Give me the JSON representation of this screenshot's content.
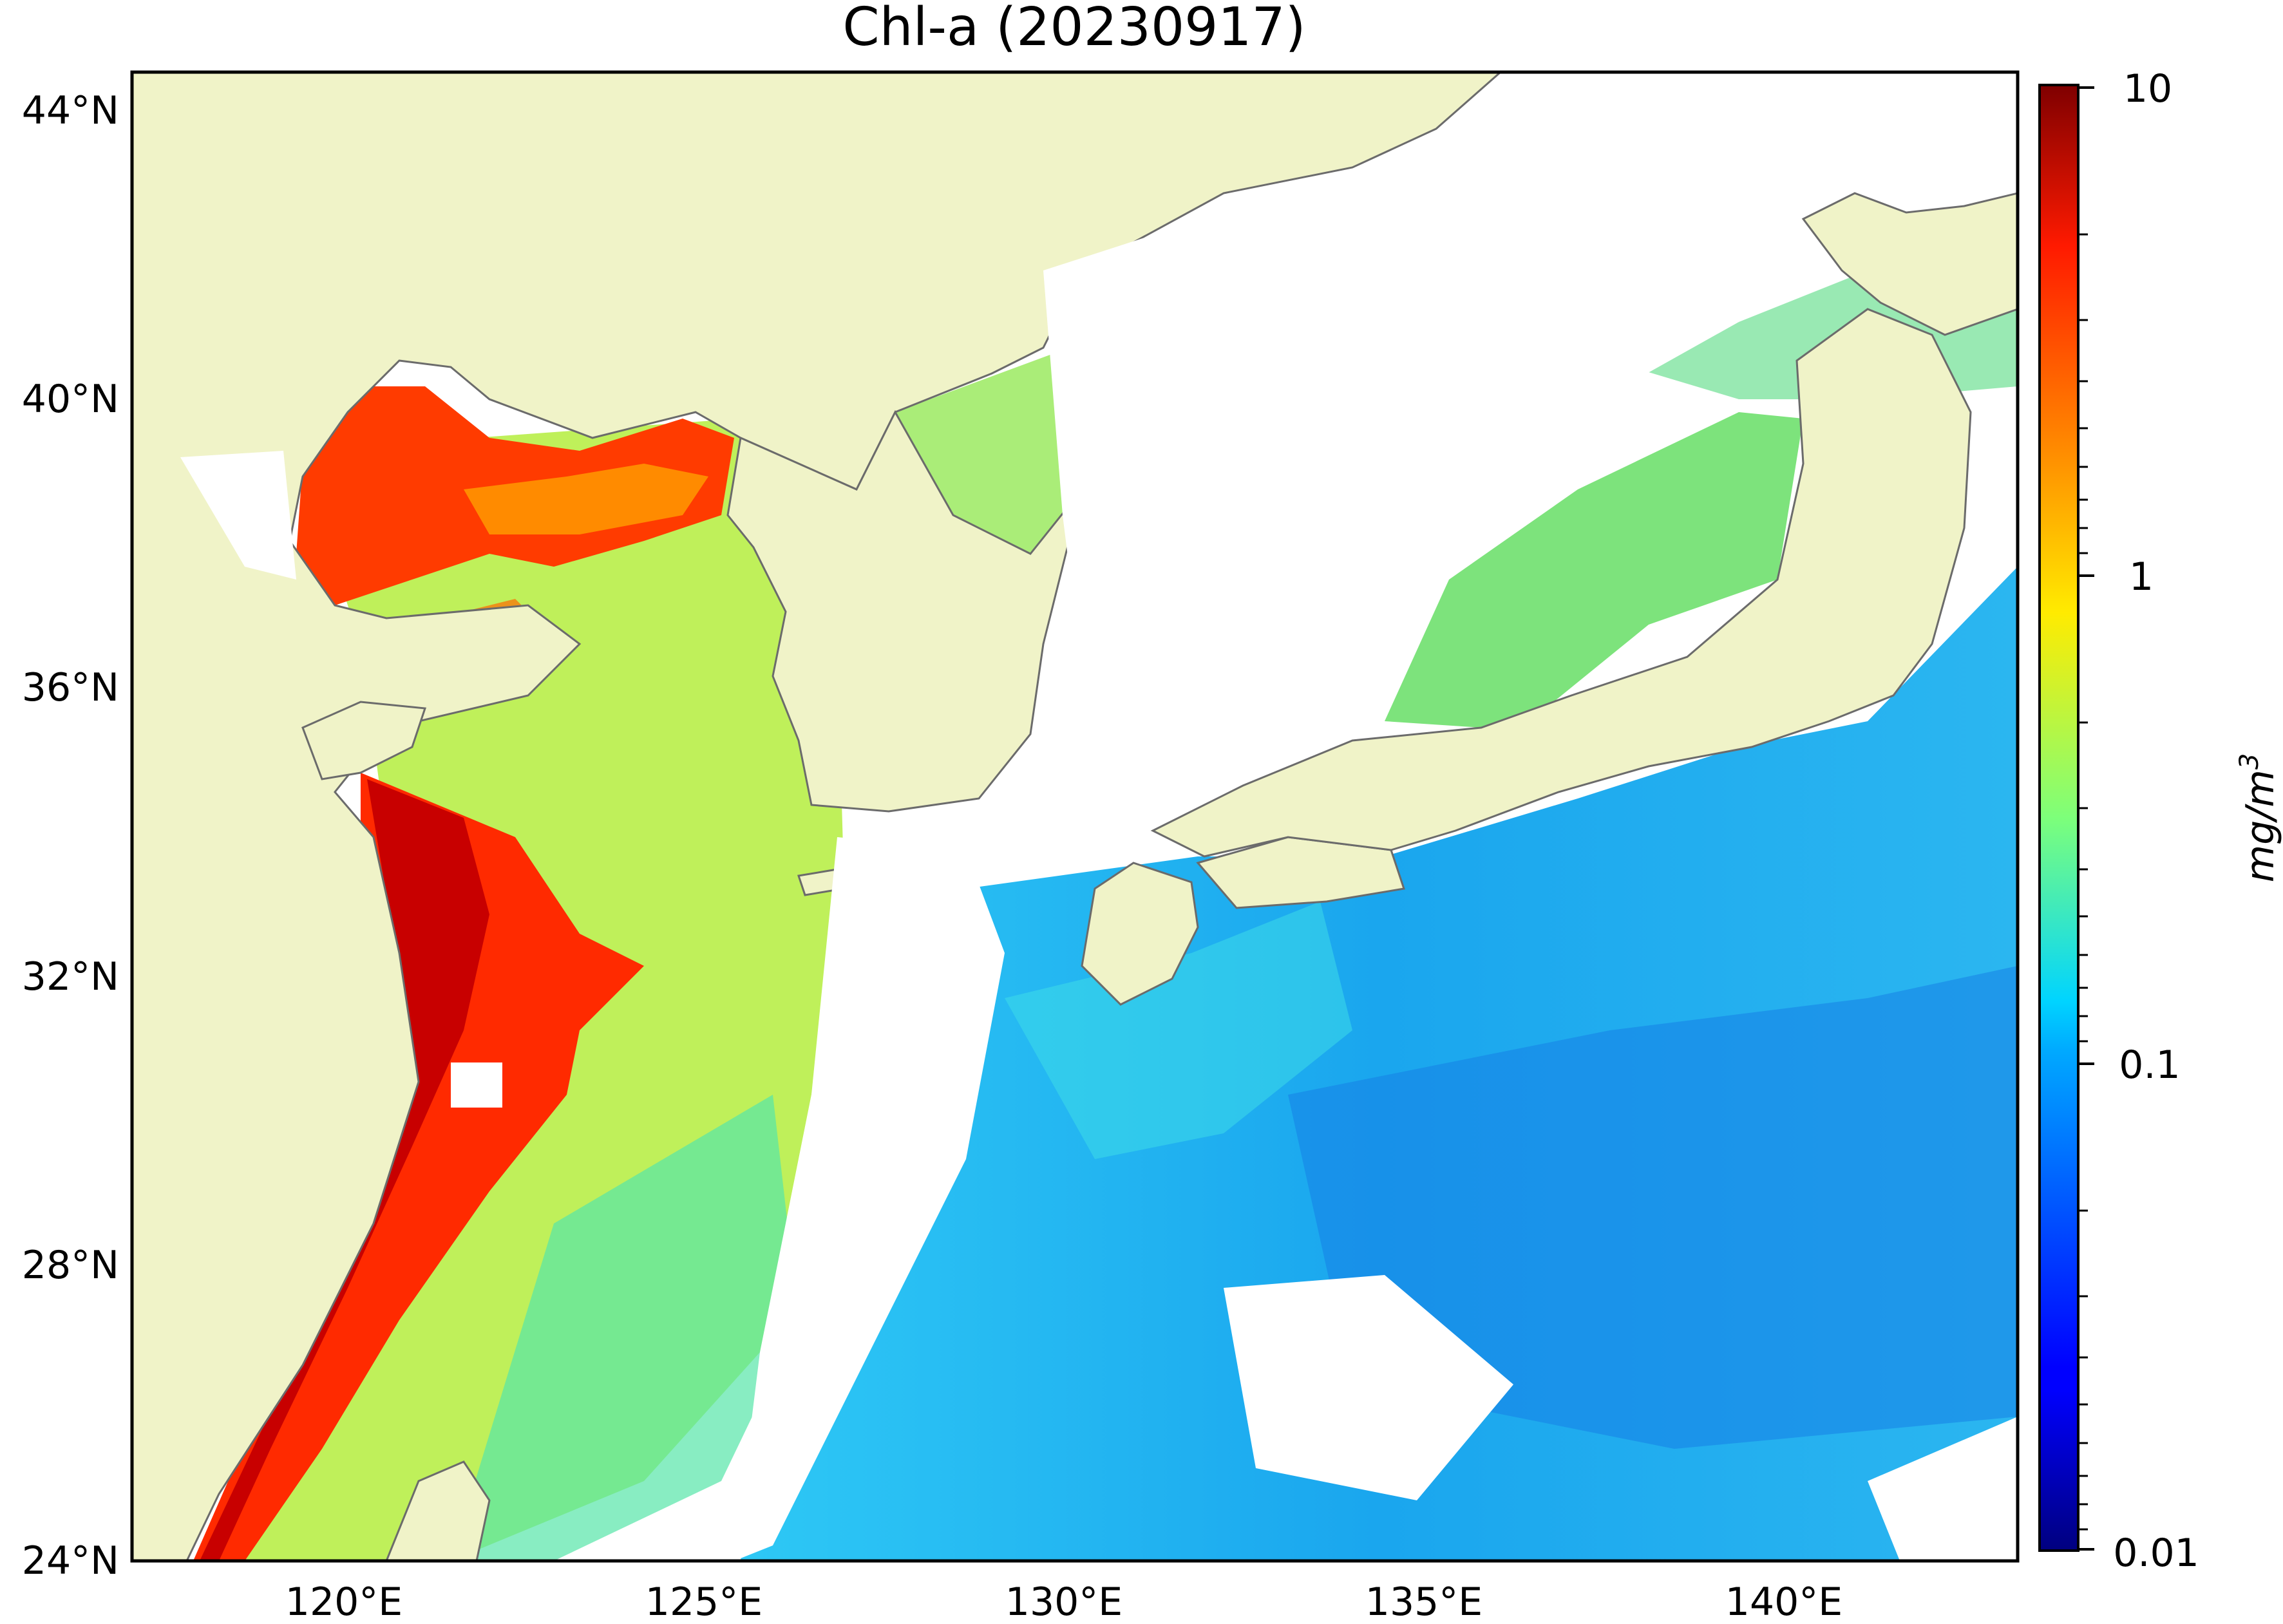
{
  "title": "Chl-a (20230917)",
  "map": {
    "lon_range": [
      116.8,
      143.0
    ],
    "lat_range": [
      24.0,
      44.6
    ],
    "lat_ticks": [
      "44°N",
      "40°N",
      "36°N",
      "32°N",
      "28°N",
      "24°N"
    ],
    "lon_ticks": [
      "120°E",
      "125°E",
      "130°E",
      "135°E",
      "140°E"
    ],
    "land_color": "#f0f3c8",
    "nodata_color": "#ffffff",
    "coast_color": "#6b6b6b"
  },
  "colorbar": {
    "label": "mg/m",
    "label_sup": "3",
    "scale": "log",
    "colormap": "jet",
    "range": [
      0.01,
      10
    ],
    "ticks": [
      "10",
      "1",
      "0.1",
      "0.01"
    ]
  }
}
